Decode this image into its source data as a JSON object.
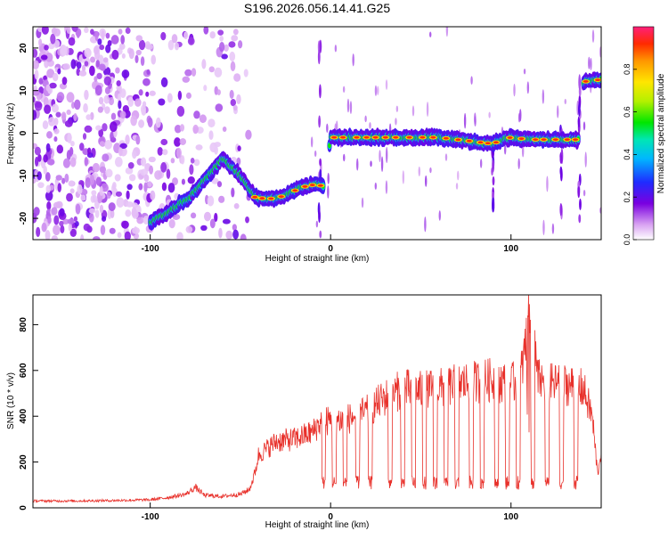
{
  "title": "S196.2026.056.14.41.G25",
  "colors": {
    "snr_line": "#e8312b",
    "axis": "#000000",
    "background": "#ffffff"
  },
  "chart_data": [
    {
      "type": "heatmap",
      "xlabel": "Height of straight line (km)",
      "ylabel": "Frequency (Hz)",
      "xlim": [
        -165,
        150
      ],
      "ylim": [
        -25,
        25
      ],
      "x_ticks": [
        -100,
        0,
        100
      ],
      "y_ticks": [
        -20,
        -10,
        0,
        10,
        20
      ],
      "colorbar": {
        "label": "Normalized spectral amplitude",
        "range": [
          0,
          1
        ],
        "ticks": [
          0.0,
          0.2,
          0.4,
          0.6,
          0.8
        ],
        "tick_labels": [
          "0.0",
          "0.2",
          "0.4",
          "0.6",
          "0.8"
        ]
      },
      "ridge": {
        "x": [
          -100,
          -92,
          -85,
          -78,
          -72,
          -66,
          -60,
          -55,
          -50,
          -45,
          -42,
          -35,
          -28,
          -20,
          -14,
          -8,
          -4,
          0,
          10,
          30,
          50,
          60,
          70,
          80,
          90,
          95,
          100,
          110,
          125,
          138,
          140,
          145,
          150
        ],
        "y": [
          -21,
          -19,
          -17,
          -15,
          -12,
          -9,
          -6,
          -8,
          -10,
          -13,
          -15,
          -15.5,
          -15,
          -13.5,
          -12.5,
          -12,
          -12.5,
          -1,
          -1,
          -1,
          -1,
          -1,
          -1.5,
          -2,
          -2.5,
          -1.5,
          -1,
          -1.5,
          -1.5,
          -1.5,
          12,
          12.5,
          12.5
        ]
      }
    },
    {
      "type": "line",
      "xlabel": "Height of straight line (km)",
      "ylabel": "SNR (10 * v/v)",
      "xlim": [
        -165,
        150
      ],
      "ylim": [
        0,
        930
      ],
      "x_ticks": [
        -100,
        0,
        100
      ],
      "y_ticks": [
        0,
        200,
        400,
        600,
        800
      ],
      "series": [
        {
          "x": [
            -165,
            -140,
            -120,
            -100,
            -90,
            -80,
            -75,
            -70,
            -60,
            -50,
            -45,
            -42,
            -40,
            -35,
            -30,
            -20,
            -10,
            -5,
            0,
            10,
            20,
            30,
            40,
            50,
            60,
            70,
            80,
            90,
            100,
            105,
            108,
            110,
            115,
            120,
            130,
            140,
            145,
            148,
            150
          ],
          "y": [
            30,
            30,
            32,
            35,
            45,
            60,
            90,
            55,
            50,
            60,
            80,
            150,
            230,
            260,
            290,
            300,
            330,
            380,
            380,
            390,
            420,
            480,
            520,
            510,
            520,
            540,
            550,
            560,
            540,
            560,
            700,
            880,
            560,
            540,
            540,
            520,
            400,
            150,
            250
          ]
        }
      ]
    }
  ]
}
